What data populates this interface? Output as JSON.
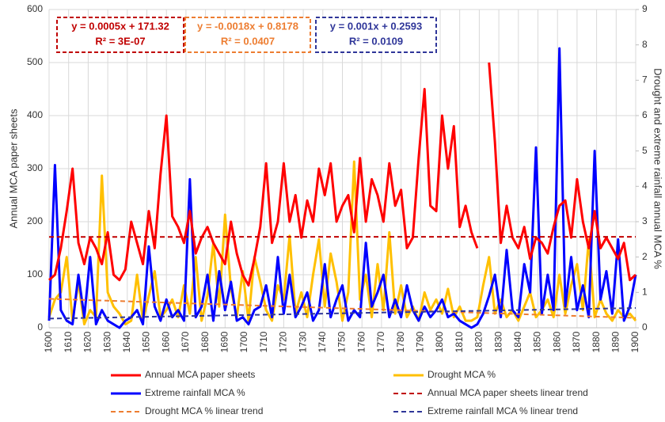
{
  "chart_data": {
    "type": "line",
    "xlabel": "",
    "ylabel": "Annual MCA paper sheets",
    "y2label": "Drought and extreme rainfall annual MCA %",
    "xlim": [
      1600,
      1900
    ],
    "xticks": [
      1600,
      1610,
      1620,
      1630,
      1640,
      1650,
      1660,
      1670,
      1680,
      1690,
      1700,
      1710,
      1720,
      1730,
      1740,
      1750,
      1760,
      1770,
      1780,
      1790,
      1800,
      1810,
      1820,
      1830,
      1840,
      1850,
      1860,
      1870,
      1880,
      1890,
      1900
    ],
    "ylim": [
      0,
      600
    ],
    "yticks": [
      0,
      100,
      200,
      300,
      400,
      500,
      600
    ],
    "y2lim": [
      0,
      9
    ],
    "y2ticks": [
      0,
      1,
      2,
      3,
      4,
      5,
      6,
      7,
      8,
      9
    ],
    "grid": true,
    "legend": "bottom",
    "annotations": [
      {
        "lines": [
          "y = 0.0005x + 171.32",
          "R² = 3E-07"
        ],
        "color": "#c00000"
      },
      {
        "lines": [
          "y = -0.0018x + 0.8178",
          "R² = 0.0407"
        ],
        "color": "#ed7d31"
      },
      {
        "lines": [
          "y = 0.001x + 0.2593",
          "R² = 0.0109"
        ],
        "color": "#2f3699"
      }
    ],
    "x": [
      1600,
      1603,
      1606,
      1609,
      1612,
      1615,
      1618,
      1621,
      1624,
      1627,
      1630,
      1633,
      1636,
      1639,
      1642,
      1645,
      1648,
      1651,
      1654,
      1657,
      1660,
      1663,
      1666,
      1669,
      1672,
      1675,
      1678,
      1681,
      1684,
      1687,
      1690,
      1693,
      1696,
      1699,
      1702,
      1705,
      1708,
      1711,
      1714,
      1717,
      1720,
      1723,
      1726,
      1729,
      1732,
      1735,
      1738,
      1741,
      1744,
      1747,
      1750,
      1753,
      1756,
      1759,
      1762,
      1765,
      1768,
      1771,
      1774,
      1777,
      1780,
      1783,
      1786,
      1789,
      1792,
      1795,
      1798,
      1801,
      1804,
      1807,
      1810,
      1813,
      1816,
      1819,
      1822,
      1825,
      1828,
      1831,
      1834,
      1837,
      1840,
      1843,
      1846,
      1849,
      1852,
      1855,
      1858,
      1861,
      1864,
      1867,
      1870,
      1873,
      1876,
      1879,
      1882,
      1885,
      1888,
      1891,
      1894,
      1897,
      1900
    ],
    "series": [
      {
        "name": "Annual MCA paper sheets",
        "color": "#ff0000",
        "values": [
          90,
          100,
          150,
          220,
          300,
          160,
          120,
          170,
          150,
          120,
          180,
          100,
          90,
          110,
          200,
          160,
          120,
          220,
          150,
          290,
          400,
          210,
          190,
          160,
          220,
          140,
          170,
          190,
          160,
          140,
          120,
          200,
          140,
          100,
          80,
          130,
          190,
          310,
          160,
          200,
          310,
          200,
          250,
          170,
          240,
          200,
          300,
          250,
          310,
          200,
          230,
          250,
          180,
          320,
          200,
          280,
          250,
          200,
          310,
          230,
          260,
          150,
          170,
          320,
          450,
          230,
          220,
          400,
          300,
          380,
          190,
          230,
          180,
          150,
          null,
          500,
          350,
          160,
          230,
          170,
          150,
          190,
          130,
          170,
          160,
          140,
          190,
          230,
          240,
          170,
          280,
          200,
          150,
          220,
          150,
          170,
          150,
          130,
          160,
          90,
          100
        ]
      },
      {
        "name": "Drought MCA %",
        "color": "#ffc000",
        "axis": "y2",
        "values": [
          0.3,
          0.8,
          1.0,
          2.0,
          0.2,
          1.3,
          0.1,
          0.5,
          0.3,
          4.3,
          1.0,
          0.6,
          0.4,
          0.1,
          0.2,
          1.5,
          0.2,
          0.9,
          1.6,
          0.3,
          0.5,
          0.8,
          0.3,
          1.2,
          0.4,
          2.0,
          0.2,
          0.9,
          2.4,
          0.6,
          3.2,
          1.1,
          0.3,
          1.6,
          0.2,
          2.0,
          1.3,
          0.5,
          0.2,
          1.2,
          0.8,
          2.6,
          0.4,
          1.0,
          0.3,
          1.5,
          2.5,
          0.6,
          2.1,
          1.3,
          0.2,
          1.0,
          4.7,
          0.8,
          1.5,
          0.3,
          1.8,
          0.5,
          2.7,
          0.4,
          1.2,
          0.3,
          0.6,
          0.2,
          1.0,
          0.5,
          0.8,
          0.4,
          1.1,
          0.3,
          0.6,
          0.2,
          0.2,
          0.3,
          1.2,
          2.0,
          0.4,
          0.8,
          0.3,
          0.5,
          0.2,
          0.6,
          1.0,
          0.3,
          0.5,
          0.8,
          0.3,
          1.5,
          0.4,
          1.2,
          1.8,
          0.5,
          2.5,
          0.3,
          0.8,
          0.4,
          0.2,
          0.5,
          0.3,
          0.4,
          0.2
        ]
      },
      {
        "name": "Extreme rainfall MCA %",
        "color": "#0000ff",
        "axis": "y2",
        "values": [
          0.2,
          4.6,
          0.5,
          0.2,
          0.1,
          1.5,
          0.3,
          2.0,
          0.1,
          0.5,
          0.2,
          0.1,
          0.0,
          0.2,
          0.3,
          0.5,
          0.1,
          2.3,
          0.6,
          0.2,
          0.8,
          0.3,
          0.5,
          0.2,
          4.2,
          0.3,
          0.6,
          1.5,
          0.2,
          1.6,
          0.5,
          1.3,
          0.2,
          0.3,
          0.1,
          0.5,
          0.6,
          1.2,
          0.3,
          2.0,
          0.4,
          1.5,
          0.3,
          0.6,
          1.0,
          0.2,
          0.5,
          1.8,
          0.3,
          0.8,
          1.2,
          0.2,
          0.5,
          0.3,
          2.4,
          0.6,
          1.0,
          1.5,
          0.3,
          0.8,
          0.3,
          1.2,
          0.5,
          0.2,
          0.6,
          0.3,
          0.5,
          0.8,
          0.3,
          0.4,
          0.2,
          0.1,
          0.0,
          0.1,
          0.4,
          0.9,
          1.5,
          0.3,
          2.2,
          0.5,
          0.3,
          1.8,
          1.0,
          5.1,
          0.4,
          1.5,
          0.5,
          7.9,
          0.6,
          2.0,
          0.5,
          1.2,
          0.3,
          5.0,
          0.8,
          1.6,
          0.4,
          2.5,
          0.2,
          0.6,
          1.5
        ]
      },
      {
        "name": "Annual MCA paper sheets linear trend",
        "color": "#c00000",
        "dashed": true,
        "x": [
          1600,
          1900
        ],
        "values": [
          171.32,
          171.47
        ]
      },
      {
        "name": "Drought MCA % linear trend",
        "color": "#ed7d31",
        "dashed": true,
        "axis": "y2",
        "x": [
          1600,
          1900
        ],
        "values": [
          0.82,
          0.28
        ]
      },
      {
        "name": "Extreme rainfall MCA % linear trend",
        "color": "#2f3699",
        "dashed": true,
        "axis": "y2",
        "x": [
          1600,
          1900
        ],
        "values": [
          0.26,
          0.56
        ]
      }
    ]
  }
}
